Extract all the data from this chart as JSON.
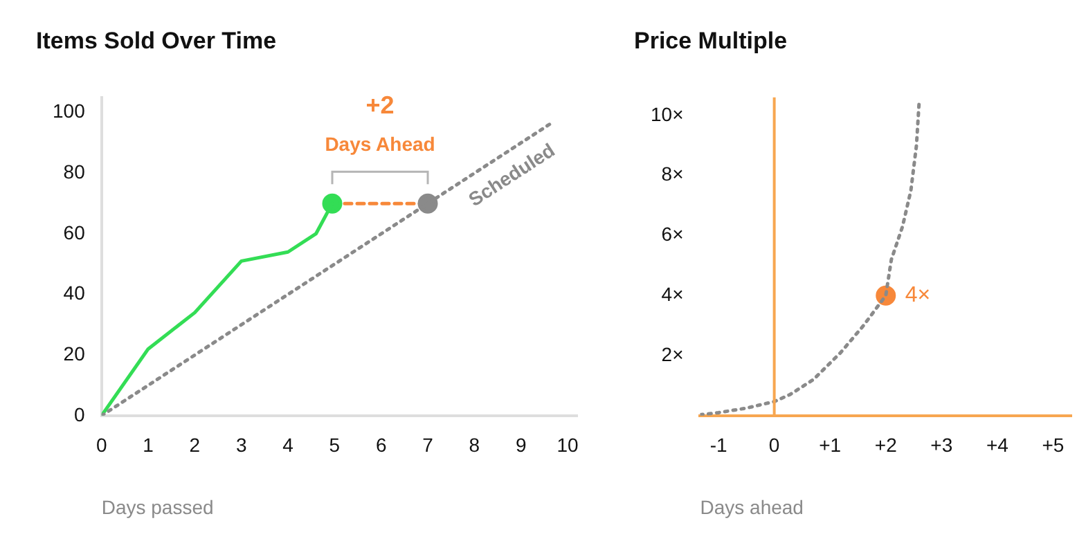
{
  "chart_data": [
    {
      "type": "line",
      "title": "Items Sold Over Time",
      "xlabel": "Days passed",
      "xlim": [
        0,
        10.2
      ],
      "xticks": [
        0,
        1,
        2,
        3,
        4,
        5,
        6,
        7,
        8,
        9,
        10
      ],
      "ylim": [
        0,
        105
      ],
      "yticks": [
        0,
        20,
        40,
        60,
        80,
        100
      ],
      "grid": false,
      "legend": false,
      "marker": "none",
      "series": [
        {
          "name": "Scheduled",
          "color": "#8a8a8a",
          "x": [
            0,
            9.7
          ],
          "values": [
            0,
            97
          ],
          "line_style": "dotted"
        },
        {
          "color": "#33dd55",
          "x": [
            0,
            1,
            2,
            3,
            4,
            4.6,
            4.95
          ],
          "values": [
            0,
            22,
            34,
            51,
            54,
            60,
            70
          ]
        },
        {
          "type": "scatter",
          "marker": "circle",
          "color": "#33dd55",
          "x": [
            4.95
          ],
          "values": [
            70
          ]
        },
        {
          "type": "scatter",
          "marker": "circle",
          "color": "#8a8a8a",
          "x": [
            7
          ],
          "values": [
            70
          ]
        },
        {
          "color": "#f7883a",
          "x": [
            4.95,
            7
          ],
          "values": [
            70,
            70
          ],
          "line_style": "dashed"
        }
      ],
      "annotations": [
        "+2",
        "Days Ahead"
      ]
    },
    {
      "type": "line",
      "title": "Price Multiple",
      "xlabel": "Days ahead",
      "xlim": [
        -1.33,
        5.33
      ],
      "xticks": [
        {
          "value": -1,
          "label": "-1"
        },
        0,
        {
          "value": 1,
          "label": "+1"
        },
        {
          "value": 2,
          "label": "+2"
        },
        {
          "value": 3,
          "label": "+3"
        },
        {
          "value": 4,
          "label": "+4"
        },
        {
          "value": 5,
          "label": "+5"
        }
      ],
      "ylim": [
        0,
        10.6
      ],
      "yticks": [
        {
          "value": 2,
          "label": "2×"
        },
        {
          "value": 4,
          "label": "4×"
        },
        {
          "value": 6,
          "label": "6×"
        },
        {
          "value": 8,
          "label": "8×"
        },
        {
          "value": 10,
          "label": "10×"
        }
      ],
      "grid": false,
      "legend": false,
      "marker": "none",
      "ref_lines": [
        {
          "axis": "x",
          "value": 0,
          "color": "#f7a650"
        }
      ],
      "series": [
        {
          "color": "#8a8a8a",
          "x": [
            -1.33,
            -1,
            -0.5,
            0,
            0.28,
            0.7,
            1.19,
            1.6,
            2,
            2.1,
            2.3,
            2.45,
            2.55,
            2.6
          ],
          "values": [
            0.03,
            0.1,
            0.25,
            0.47,
            0.7,
            1.2,
            2.1,
            3,
            4,
            5.2,
            6.3,
            7.5,
            9,
            10.5
          ],
          "line_style": "dotted"
        },
        {
          "type": "scatter",
          "marker": "circle",
          "color": "#f7883a",
          "x": [
            2
          ],
          "values": [
            4
          ],
          "value_labels": [
            "4×"
          ]
        }
      ]
    }
  ]
}
